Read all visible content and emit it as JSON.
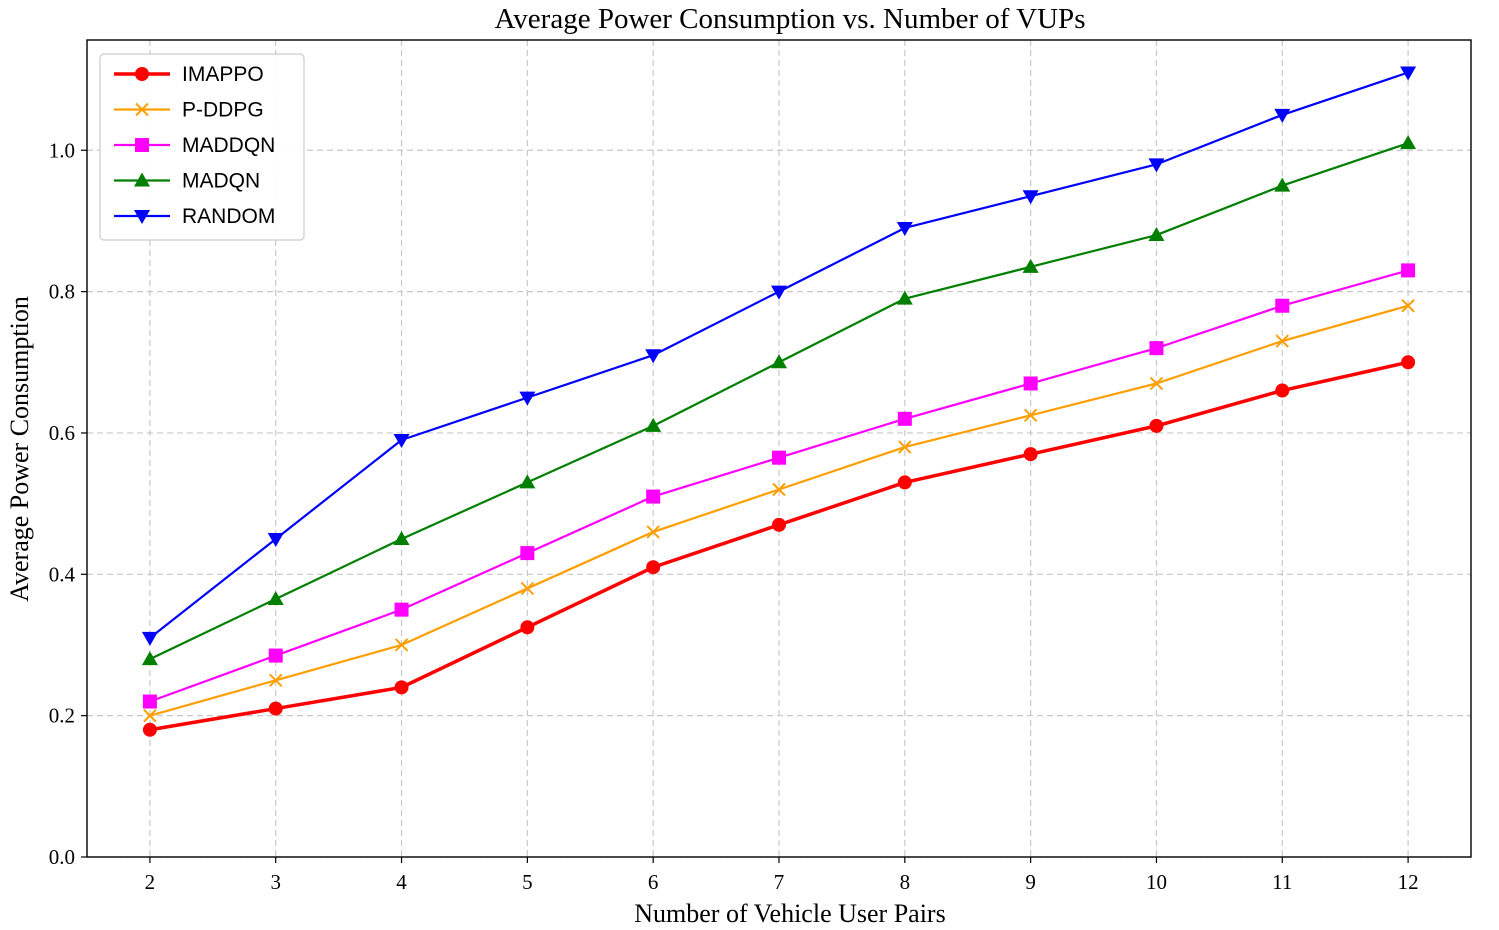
{
  "chart_data": {
    "type": "line",
    "title": "Average Power Consumption vs. Number of VUPs",
    "xlabel": "Number of Vehicle User Pairs",
    "ylabel": "Average Power Consumption",
    "x": [
      2,
      3,
      4,
      5,
      6,
      7,
      8,
      9,
      10,
      11,
      12
    ],
    "x_tick_labels": [
      "2",
      "3",
      "4",
      "5",
      "6",
      "7",
      "8",
      "9",
      "10",
      "11",
      "12"
    ],
    "y_ticks": [
      0.0,
      0.2,
      0.4,
      0.6,
      0.8,
      1.0
    ],
    "y_tick_labels": [
      "0.0",
      "0.2",
      "0.4",
      "0.6",
      "0.8",
      "1.0"
    ],
    "xlim": [
      1.5,
      12.5
    ],
    "ylim": [
      0.0,
      1.156
    ],
    "grid": true,
    "legend_position": "top-left",
    "series": [
      {
        "name": "IMAPPO",
        "color": "#ff0000",
        "marker": "circle",
        "values": [
          0.18,
          0.21,
          0.24,
          0.325,
          0.41,
          0.47,
          0.53,
          0.57,
          0.61,
          0.66,
          0.7
        ]
      },
      {
        "name": "P-DDPG",
        "color": "#ff9e00",
        "marker": "x",
        "values": [
          0.2,
          0.25,
          0.3,
          0.38,
          0.46,
          0.52,
          0.58,
          0.625,
          0.67,
          0.73,
          0.78
        ]
      },
      {
        "name": "MADDQN",
        "color": "#ff00ff",
        "marker": "square",
        "values": [
          0.22,
          0.285,
          0.35,
          0.43,
          0.51,
          0.565,
          0.62,
          0.67,
          0.72,
          0.78,
          0.83
        ]
      },
      {
        "name": "MADQN",
        "color": "#007f00",
        "marker": "triangle-up",
        "values": [
          0.28,
          0.365,
          0.45,
          0.53,
          0.61,
          0.7,
          0.79,
          0.835,
          0.88,
          0.95,
          1.01
        ]
      },
      {
        "name": "RANDOM",
        "color": "#0000ff",
        "marker": "triangle-down",
        "values": [
          0.31,
          0.45,
          0.59,
          0.65,
          0.71,
          0.8,
          0.89,
          0.935,
          0.98,
          1.05,
          1.11
        ]
      }
    ]
  }
}
